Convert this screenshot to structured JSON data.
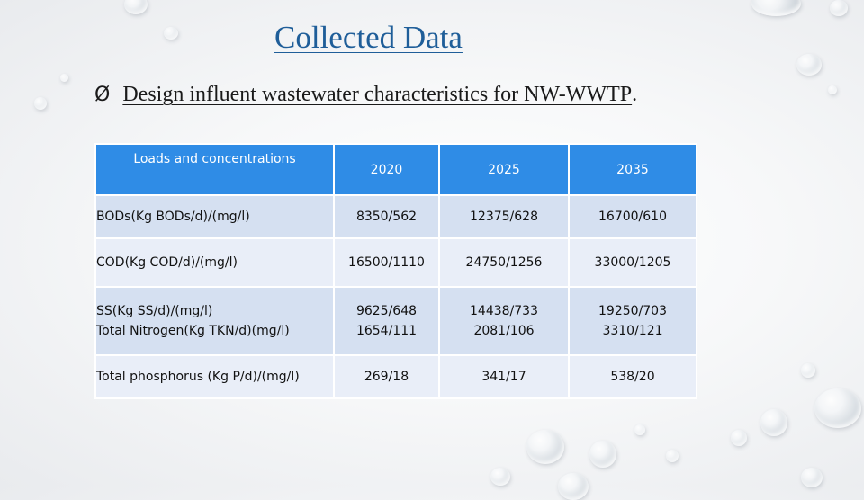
{
  "slide": {
    "title": "Collected Data",
    "bullet_icon": "arrow-bullet-icon",
    "bullet_glyph": "Ø",
    "bullet_text": "Design influent wastewater characteristics for NW-WWTP",
    "bullet_period": "."
  },
  "table": {
    "headers": [
      "Loads and concentrations",
      "2020",
      "2025",
      "2035"
    ],
    "rows": [
      {
        "label": [
          "BODs(Kg BODs/d)/(mg/l)"
        ],
        "values": [
          [
            "8350/562"
          ],
          [
            "12375/628"
          ],
          [
            "16700/610"
          ]
        ]
      },
      {
        "label": [
          "COD(Kg COD/d)/(mg/l)"
        ],
        "values": [
          [
            "16500/1110"
          ],
          [
            "24750/1256"
          ],
          [
            "33000/1205"
          ]
        ]
      },
      {
        "label": [
          "SS(Kg SS/d)/(mg/l)",
          "Total Nitrogen(Kg TKN/d)(mg/l)"
        ],
        "values": [
          [
            "9625/648",
            "1654/111"
          ],
          [
            "14438/733",
            "2081/106"
          ],
          [
            "19250/703",
            "3310/121"
          ]
        ]
      },
      {
        "label": [
          "Total phosphorus (Kg P/d)/(mg/l)"
        ],
        "values": [
          [
            "269/18"
          ],
          [
            "341/17"
          ],
          [
            "538/20"
          ]
        ]
      }
    ]
  },
  "colors": {
    "title": "#1f5e99",
    "header_bg": "#2f8ce6",
    "row_bg": "#d5e0f1",
    "row_alt_bg": "#e9eef8"
  }
}
